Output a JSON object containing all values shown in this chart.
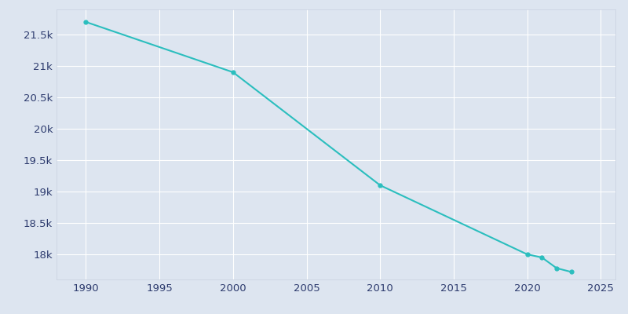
{
  "years": [
    1990,
    2000,
    2010,
    2020,
    2021,
    2022,
    2023
  ],
  "population": [
    21700,
    20900,
    19100,
    18000,
    17950,
    17780,
    17720
  ],
  "line_color": "#2bbebe",
  "marker_color": "#2bbebe",
  "bg_color": "#dde5f0",
  "xlim": [
    1988,
    2026
  ],
  "ylim": [
    17600,
    21900
  ],
  "xticks": [
    1990,
    1995,
    2000,
    2005,
    2010,
    2015,
    2020,
    2025
  ],
  "yticks": [
    18000,
    18500,
    19000,
    19500,
    20000,
    20500,
    21000,
    21500
  ],
  "grid_color": "#ffffff",
  "tick_color": "#2d3b6e",
  "spine_color": "#c8d0e0"
}
